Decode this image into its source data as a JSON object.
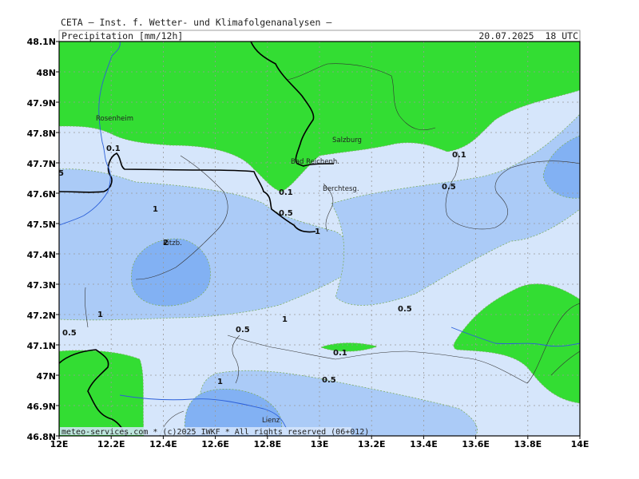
{
  "header": {
    "title": "CETA — Inst. f. Wetter- und Klimafolgenanalysen —",
    "field": "Precipitation [mm/12h]",
    "valid_time": "20.07.2025  18 UTC"
  },
  "footer": {
    "credit": "meteo-services.com * (c)2025 IWKF * All rights reserved (06+012)"
  },
  "axes": {
    "lon_labels": [
      "12E",
      "12.2E",
      "12.4E",
      "12.6E",
      "12.8E",
      "13E",
      "13.2E",
      "13.4E",
      "13.6E",
      "13.8E",
      "14E"
    ],
    "lat_labels": [
      "48.1N",
      "48N",
      "47.9N",
      "47.8N",
      "47.7N",
      "47.6N",
      "47.5N",
      "47.4N",
      "47.3N",
      "47.2N",
      "47.1N",
      "47N",
      "46.9N",
      "46.8N"
    ]
  },
  "colors": {
    "green": "#33dd33",
    "very_light_blue": "#d6e6fb",
    "light_blue": "#abcbf7",
    "mid_blue": "#82b1f3",
    "river": "#2b5fd9",
    "contour": "#7fae63"
  },
  "places": [
    {
      "name": "Rosenheim"
    },
    {
      "name": "Salzburg"
    },
    {
      "name": "Bad Reichenh."
    },
    {
      "name": "Berchtesg."
    },
    {
      "name": "Kitzb."
    },
    {
      "name": "Lienz"
    }
  ],
  "contour_labels": [
    {
      "text": "0.1"
    },
    {
      "text": "5"
    },
    {
      "text": "0.1"
    },
    {
      "text": "0.5"
    },
    {
      "text": "1"
    },
    {
      "text": "0.1"
    },
    {
      "text": "0.5"
    },
    {
      "text": "1"
    },
    {
      "text": "2"
    },
    {
      "text": "0.5"
    },
    {
      "text": "1"
    },
    {
      "text": "0.5"
    },
    {
      "text": "1"
    },
    {
      "text": "0.5"
    },
    {
      "text": "0.1"
    },
    {
      "text": "1"
    },
    {
      "text": "0.5"
    }
  ]
}
